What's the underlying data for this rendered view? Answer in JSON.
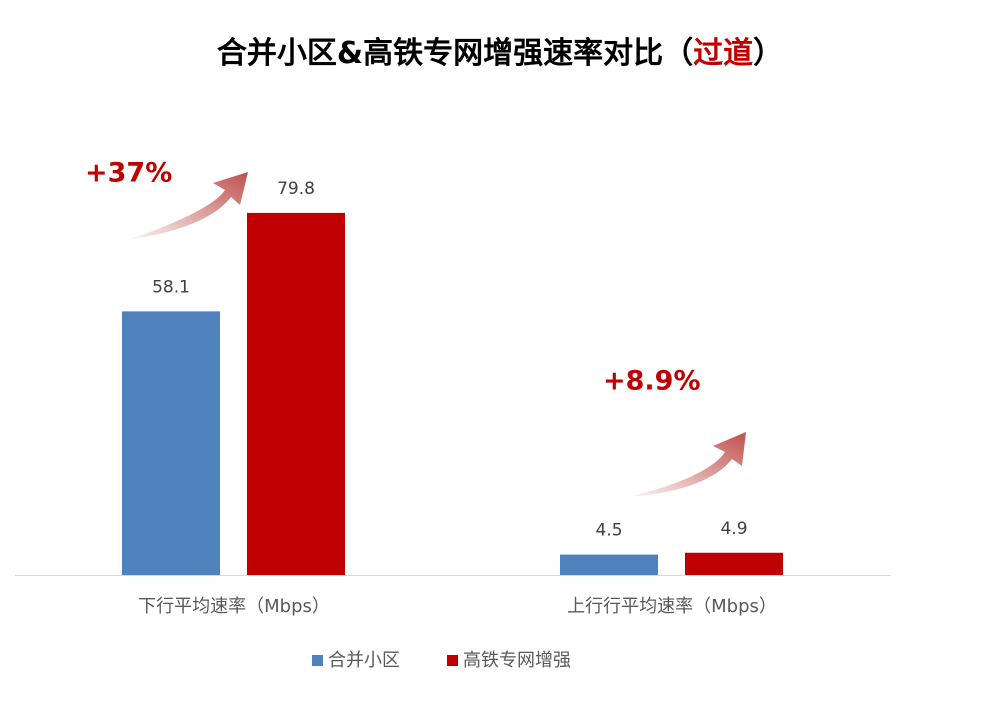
{
  "chart_data": {
    "type": "bar",
    "title": [
      {
        "text": "合并小区&高铁专网增强速率对比（",
        "color": "#000000"
      },
      {
        "text": "过道",
        "color": "#c00000"
      },
      {
        "text": "）",
        "color": "#000000"
      }
    ],
    "categories": [
      "下行平均速率（Mbps）",
      "上行行平均速率（Mbps）"
    ],
    "series": [
      {
        "name": "合并小区",
        "color": "#4f81bd",
        "values": [
          58.1,
          4.5
        ]
      },
      {
        "name": "高铁专网增强",
        "color": "#c00000",
        "values": [
          79.8,
          4.9
        ]
      }
    ],
    "annotations": [
      "+37%",
      "+8.9%"
    ],
    "ylim": [
      0,
      80
    ]
  }
}
